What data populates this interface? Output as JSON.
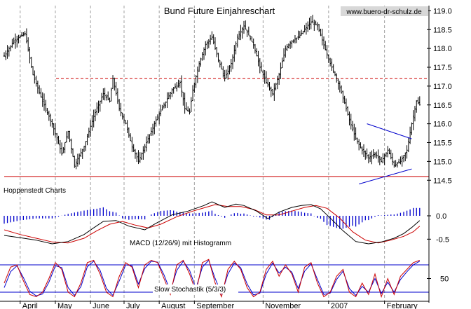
{
  "chart_data": [
    {
      "panel": "price",
      "type": "ohlc",
      "title": "Bund Future Einjahreschart",
      "source": "www.buero-dr-schulz.de",
      "ylim": [
        114.3,
        119.1
      ],
      "y_ticks": [
        119.0,
        118.5,
        118.0,
        117.5,
        117.0,
        116.5,
        116.0,
        115.5,
        115.0,
        114.5
      ],
      "y_tick_labels": [
        "119.0",
        "118.5",
        "118.0",
        "117.5",
        "117.0",
        "116.5",
        "116.0",
        "115.5",
        "115.0",
        "114.5"
      ],
      "close_path": [
        [
          0,
          117.8
        ],
        [
          6,
          118.2
        ],
        [
          13,
          118.4
        ],
        [
          18,
          117.3
        ],
        [
          24,
          116.6
        ],
        [
          30,
          116.0
        ],
        [
          36,
          115.2
        ],
        [
          40,
          115.8
        ],
        [
          44,
          114.9
        ],
        [
          50,
          115.4
        ],
        [
          56,
          116.2
        ],
        [
          62,
          116.8
        ],
        [
          66,
          116.6
        ],
        [
          68,
          117.2
        ],
        [
          72,
          116.4
        ],
        [
          76,
          116.0
        ],
        [
          80,
          115.4
        ],
        [
          84,
          115.0
        ],
        [
          90,
          115.6
        ],
        [
          95,
          116.1
        ],
        [
          100,
          116.5
        ],
        [
          105,
          116.9
        ],
        [
          110,
          117.1
        ],
        [
          113,
          116.4
        ],
        [
          116,
          116.3
        ],
        [
          118,
          116.9
        ],
        [
          122,
          117.6
        ],
        [
          126,
          118.1
        ],
        [
          130,
          118.3
        ],
        [
          134,
          117.7
        ],
        [
          138,
          117.2
        ],
        [
          142,
          117.6
        ],
        [
          146,
          118.3
        ],
        [
          150,
          118.6
        ],
        [
          156,
          118.1
        ],
        [
          160,
          117.5
        ],
        [
          164,
          117.1
        ],
        [
          168,
          116.8
        ],
        [
          172,
          117.3
        ],
        [
          176,
          118.0
        ],
        [
          180,
          118.2
        ],
        [
          184,
          118.3
        ],
        [
          188,
          118.5
        ],
        [
          192,
          118.7
        ],
        [
          196,
          118.6
        ],
        [
          200,
          118.1
        ],
        [
          204,
          117.6
        ],
        [
          208,
          117.2
        ],
        [
          212,
          116.7
        ],
        [
          216,
          116.1
        ],
        [
          220,
          115.6
        ],
        [
          224,
          115.3
        ],
        [
          228,
          115.1
        ],
        [
          232,
          115.2
        ],
        [
          236,
          115.0
        ],
        [
          240,
          115.3
        ],
        [
          244,
          114.9
        ],
        [
          248,
          115.0
        ],
        [
          252,
          115.3
        ],
        [
          255,
          116.0
        ],
        [
          258,
          116.6
        ],
        [
          260,
          116.5
        ]
      ],
      "reference_lines": [
        {
          "label": "",
          "value": 117.2,
          "style": "dashed",
          "color": "#cc0000"
        },
        {
          "label": "",
          "value": 114.6,
          "style": "solid",
          "color": "#cc0000"
        }
      ],
      "trendlines": [
        {
          "from": [
            227,
            116.0
          ],
          "to": [
            255,
            115.6
          ],
          "color": "#0000cc"
        },
        {
          "from": [
            222,
            114.4
          ],
          "to": [
            255,
            114.8
          ],
          "color": "#0000cc"
        }
      ],
      "annotation": "Hoppenstedt Charts"
    },
    {
      "panel": "macd",
      "type": "line+histogram",
      "label": "MACD (12/26/9) mit Histogramm",
      "ylim": [
        -0.75,
        0.45
      ],
      "y_ticks": [
        0.0,
        -0.5
      ],
      "y_tick_labels": [
        "0.0",
        "-0.5"
      ],
      "macd": [
        [
          0,
          -0.42
        ],
        [
          10,
          -0.47
        ],
        [
          20,
          -0.52
        ],
        [
          30,
          -0.6
        ],
        [
          40,
          -0.55
        ],
        [
          50,
          -0.4
        ],
        [
          55,
          -0.28
        ],
        [
          62,
          -0.12
        ],
        [
          70,
          -0.1
        ],
        [
          78,
          -0.22
        ],
        [
          88,
          -0.3
        ],
        [
          95,
          -0.16
        ],
        [
          105,
          0.02
        ],
        [
          115,
          0.1
        ],
        [
          125,
          0.22
        ],
        [
          130,
          0.3
        ],
        [
          138,
          0.18
        ],
        [
          145,
          0.25
        ],
        [
          150,
          0.22
        ],
        [
          158,
          0.1
        ],
        [
          165,
          -0.06
        ],
        [
          172,
          0.08
        ],
        [
          180,
          0.18
        ],
        [
          186,
          0.22
        ],
        [
          192,
          0.24
        ],
        [
          198,
          0.15
        ],
        [
          205,
          -0.08
        ],
        [
          212,
          -0.32
        ],
        [
          220,
          -0.55
        ],
        [
          228,
          -0.6
        ],
        [
          236,
          -0.56
        ],
        [
          244,
          -0.48
        ],
        [
          250,
          -0.38
        ],
        [
          255,
          -0.25
        ],
        [
          260,
          -0.1
        ]
      ],
      "signal": [
        [
          0,
          -0.3
        ],
        [
          10,
          -0.4
        ],
        [
          20,
          -0.48
        ],
        [
          30,
          -0.56
        ],
        [
          40,
          -0.58
        ],
        [
          50,
          -0.48
        ],
        [
          58,
          -0.32
        ],
        [
          66,
          -0.18
        ],
        [
          74,
          -0.12
        ],
        [
          82,
          -0.2
        ],
        [
          90,
          -0.26
        ],
        [
          98,
          -0.18
        ],
        [
          108,
          -0.02
        ],
        [
          118,
          0.1
        ],
        [
          126,
          0.18
        ],
        [
          132,
          0.24
        ],
        [
          140,
          0.2
        ],
        [
          148,
          0.2
        ],
        [
          156,
          0.14
        ],
        [
          164,
          0.02
        ],
        [
          172,
          0.02
        ],
        [
          180,
          0.1
        ],
        [
          188,
          0.18
        ],
        [
          195,
          0.22
        ],
        [
          202,
          0.16
        ],
        [
          210,
          -0.05
        ],
        [
          218,
          -0.34
        ],
        [
          226,
          -0.52
        ],
        [
          234,
          -0.58
        ],
        [
          242,
          -0.52
        ],
        [
          250,
          -0.44
        ],
        [
          256,
          -0.34
        ],
        [
          260,
          -0.22
        ]
      ]
    },
    {
      "panel": "stochastic",
      "type": "line",
      "label": "Slow Stochastik (5/3/3)",
      "ylim": [
        0,
        100
      ],
      "y_ticks": [
        50
      ],
      "y_tick_labels": [
        "50"
      ],
      "upper_band": 80,
      "lower_band": 20,
      "k": [
        [
          0,
          40
        ],
        [
          4,
          75
        ],
        [
          8,
          80
        ],
        [
          12,
          45
        ],
        [
          16,
          15
        ],
        [
          20,
          10
        ],
        [
          24,
          20
        ],
        [
          28,
          50
        ],
        [
          32,
          85
        ],
        [
          36,
          70
        ],
        [
          40,
          20
        ],
        [
          44,
          10
        ],
        [
          48,
          40
        ],
        [
          52,
          85
        ],
        [
          56,
          90
        ],
        [
          60,
          60
        ],
        [
          64,
          20
        ],
        [
          68,
          10
        ],
        [
          72,
          55
        ],
        [
          76,
          85
        ],
        [
          80,
          75
        ],
        [
          84,
          30
        ],
        [
          88,
          80
        ],
        [
          92,
          90
        ],
        [
          96,
          85
        ],
        [
          100,
          50
        ],
        [
          104,
          15
        ],
        [
          108,
          80
        ],
        [
          112,
          90
        ],
        [
          116,
          60
        ],
        [
          120,
          20
        ],
        [
          124,
          85
        ],
        [
          128,
          92
        ],
        [
          132,
          40
        ],
        [
          136,
          10
        ],
        [
          140,
          70
        ],
        [
          144,
          88
        ],
        [
          148,
          70
        ],
        [
          152,
          30
        ],
        [
          156,
          10
        ],
        [
          160,
          20
        ],
        [
          164,
          70
        ],
        [
          168,
          88
        ],
        [
          172,
          55
        ],
        [
          176,
          80
        ],
        [
          180,
          60
        ],
        [
          184,
          20
        ],
        [
          188,
          75
        ],
        [
          192,
          85
        ],
        [
          196,
          40
        ],
        [
          200,
          10
        ],
        [
          204,
          20
        ],
        [
          208,
          55
        ],
        [
          212,
          70
        ],
        [
          216,
          20
        ],
        [
          220,
          10
        ],
        [
          224,
          40
        ],
        [
          228,
          15
        ],
        [
          232,
          60
        ],
        [
          236,
          10
        ],
        [
          240,
          50
        ],
        [
          244,
          15
        ],
        [
          248,
          55
        ],
        [
          252,
          70
        ],
        [
          256,
          85
        ],
        [
          260,
          90
        ]
      ],
      "d": [
        [
          0,
          30
        ],
        [
          4,
          65
        ],
        [
          8,
          78
        ],
        [
          12,
          52
        ],
        [
          16,
          22
        ],
        [
          20,
          12
        ],
        [
          24,
          16
        ],
        [
          28,
          42
        ],
        [
          32,
          78
        ],
        [
          36,
          74
        ],
        [
          40,
          30
        ],
        [
          44,
          13
        ],
        [
          48,
          32
        ],
        [
          52,
          76
        ],
        [
          56,
          88
        ],
        [
          60,
          68
        ],
        [
          64,
          28
        ],
        [
          68,
          13
        ],
        [
          72,
          45
        ],
        [
          76,
          80
        ],
        [
          80,
          78
        ],
        [
          84,
          38
        ],
        [
          88,
          72
        ],
        [
          92,
          88
        ],
        [
          96,
          86
        ],
        [
          100,
          58
        ],
        [
          104,
          22
        ],
        [
          108,
          68
        ],
        [
          112,
          88
        ],
        [
          116,
          68
        ],
        [
          120,
          28
        ],
        [
          124,
          75
        ],
        [
          128,
          90
        ],
        [
          132,
          50
        ],
        [
          136,
          16
        ],
        [
          140,
          60
        ],
        [
          144,
          84
        ],
        [
          148,
          74
        ],
        [
          152,
          38
        ],
        [
          156,
          14
        ],
        [
          160,
          18
        ],
        [
          164,
          60
        ],
        [
          168,
          84
        ],
        [
          172,
          62
        ],
        [
          176,
          75
        ],
        [
          180,
          64
        ],
        [
          184,
          28
        ],
        [
          188,
          66
        ],
        [
          192,
          82
        ],
        [
          196,
          48
        ],
        [
          200,
          15
        ],
        [
          204,
          18
        ],
        [
          208,
          48
        ],
        [
          212,
          66
        ],
        [
          216,
          28
        ],
        [
          220,
          13
        ],
        [
          224,
          33
        ],
        [
          228,
          20
        ],
        [
          232,
          50
        ],
        [
          236,
          17
        ],
        [
          240,
          42
        ],
        [
          244,
          20
        ],
        [
          248,
          48
        ],
        [
          252,
          65
        ],
        [
          256,
          80
        ],
        [
          260,
          88
        ]
      ]
    }
  ],
  "x_axis": {
    "months": [
      {
        "label": "April",
        "pos": 10
      },
      {
        "label": "May",
        "pos": 32
      },
      {
        "label": "June",
        "pos": 54
      },
      {
        "label": "July",
        "pos": 75
      },
      {
        "label": "August",
        "pos": 97
      },
      {
        "label": "September",
        "pos": 119
      },
      {
        "label": "November",
        "pos": 162
      },
      {
        "label": "2007",
        "pos": 203
      },
      {
        "label": "February",
        "pos": 238
      }
    ]
  },
  "colors": {
    "price_bars": "#000000",
    "reference": "#cc0000",
    "trendline": "#0000cc",
    "macd_line": "#000000",
    "signal_line": "#cc0000",
    "histogram": "#0000cc",
    "stoch_k": "#cc0000",
    "stoch_d": "#0000cc",
    "grid": "#a0a0a0",
    "background": "#ffffff"
  }
}
